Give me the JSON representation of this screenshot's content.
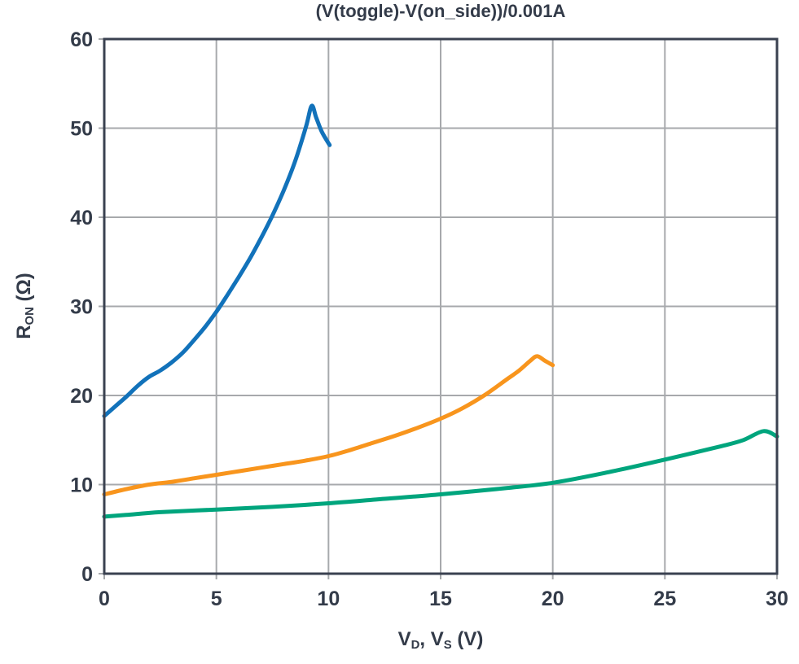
{
  "chart_data": {
    "type": "line",
    "title": "(V(toggle)-V(on_side))/0.001A",
    "xlabel": {
      "v1": "V",
      "sub1": "D",
      "sep": ", ",
      "v2": "V",
      "sub2": "S",
      "unit": " (V)"
    },
    "ylabel": {
      "base": "R",
      "sub": "ON",
      "unit": " (Ω)"
    },
    "xlim": [
      0,
      30
    ],
    "ylim": [
      0,
      60
    ],
    "x_ticks": [
      0,
      5,
      10,
      15,
      20,
      25,
      30
    ],
    "y_ticks": [
      0,
      10,
      20,
      30,
      40,
      50,
      60
    ],
    "grid": true,
    "legend_position": "none",
    "series": [
      {
        "name": "series-blue",
        "color": "#1272ba",
        "x": [
          0,
          0.5,
          1,
          1.5,
          2,
          2.5,
          3,
          3.5,
          4,
          4.5,
          5,
          5.5,
          6,
          6.5,
          7,
          7.5,
          8,
          8.5,
          9,
          9.25,
          9.45,
          9.7,
          10.05
        ],
        "y": [
          17.7,
          18.8,
          19.9,
          21.1,
          22.1,
          22.8,
          23.7,
          24.8,
          26.2,
          27.7,
          29.4,
          31.3,
          33.3,
          35.4,
          37.7,
          40.2,
          43.0,
          46.2,
          50.2,
          52.5,
          51.2,
          49.6,
          48.1
        ]
      },
      {
        "name": "series-orange",
        "color": "#f8951d",
        "x": [
          0,
          1,
          2,
          3,
          4,
          5,
          6,
          7,
          8,
          9,
          10,
          11,
          12,
          13,
          14,
          15,
          16,
          17,
          18,
          18.5,
          19,
          19.3,
          19.65,
          20
        ],
        "y": [
          8.9,
          9.5,
          10.0,
          10.3,
          10.7,
          11.1,
          11.5,
          11.9,
          12.3,
          12.7,
          13.2,
          13.9,
          14.7,
          15.5,
          16.4,
          17.4,
          18.6,
          20.1,
          21.9,
          22.8,
          23.9,
          24.4,
          23.9,
          23.4
        ]
      },
      {
        "name": "series-green",
        "color": "#00a57d",
        "x": [
          0,
          1,
          2.5,
          5,
          7.5,
          10,
          12.5,
          15,
          17.5,
          20,
          22.5,
          25,
          27.5,
          28.5,
          29.4,
          30
        ],
        "y": [
          6.4,
          6.6,
          6.9,
          7.2,
          7.5,
          7.9,
          8.4,
          8.9,
          9.5,
          10.2,
          11.4,
          12.8,
          14.3,
          15.0,
          16.0,
          15.4
        ]
      }
    ]
  },
  "styles": {
    "text_color": "#333b49",
    "grid_color": "#a7a9ac",
    "axis_color": "#3a4150",
    "background": "#ffffff"
  }
}
